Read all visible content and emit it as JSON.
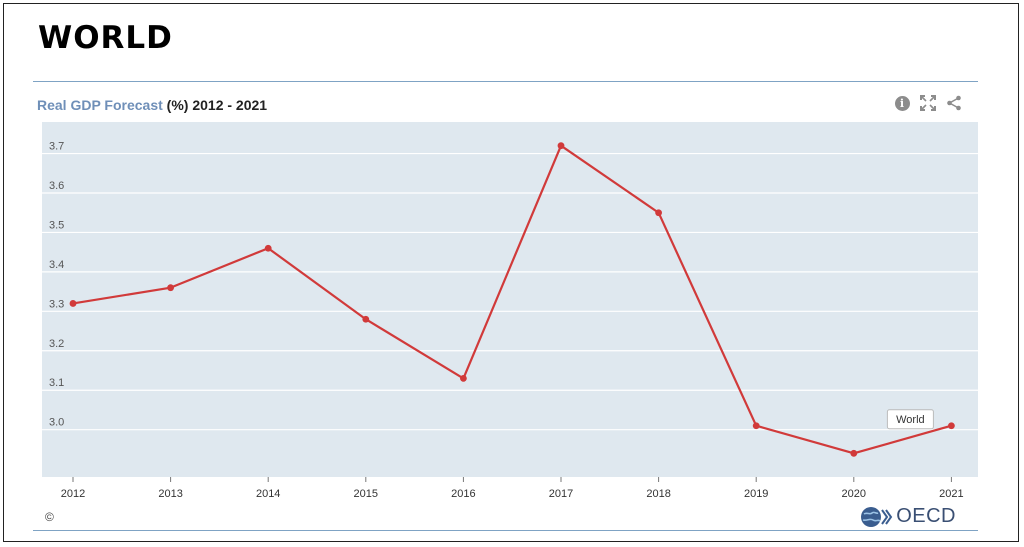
{
  "page": {
    "title": "WORLD"
  },
  "panel": {
    "title_accent": "Real GDP Forecast",
    "title_rest": " (%) 2012 - 2021",
    "copyright": "©",
    "logo_text": "OECD",
    "tools": [
      "info-icon",
      "fullscreen-icon",
      "share-icon"
    ]
  },
  "chart_data": {
    "type": "line",
    "x": [
      "2012",
      "2013",
      "2014",
      "2015",
      "2016",
      "2017",
      "2018",
      "2019",
      "2020",
      "2021"
    ],
    "series": [
      {
        "name": "World",
        "values": [
          3.32,
          3.36,
          3.46,
          3.28,
          3.13,
          3.72,
          3.55,
          3.01,
          2.94,
          3.01
        ],
        "color": "#d13a3a"
      }
    ],
    "yticks": [
      3.0,
      3.1,
      3.2,
      3.3,
      3.4,
      3.5,
      3.6,
      3.7
    ],
    "ylim": [
      2.88,
      3.78
    ],
    "grid": true,
    "plot_background": "#dfe8ef",
    "series_label": "World"
  }
}
